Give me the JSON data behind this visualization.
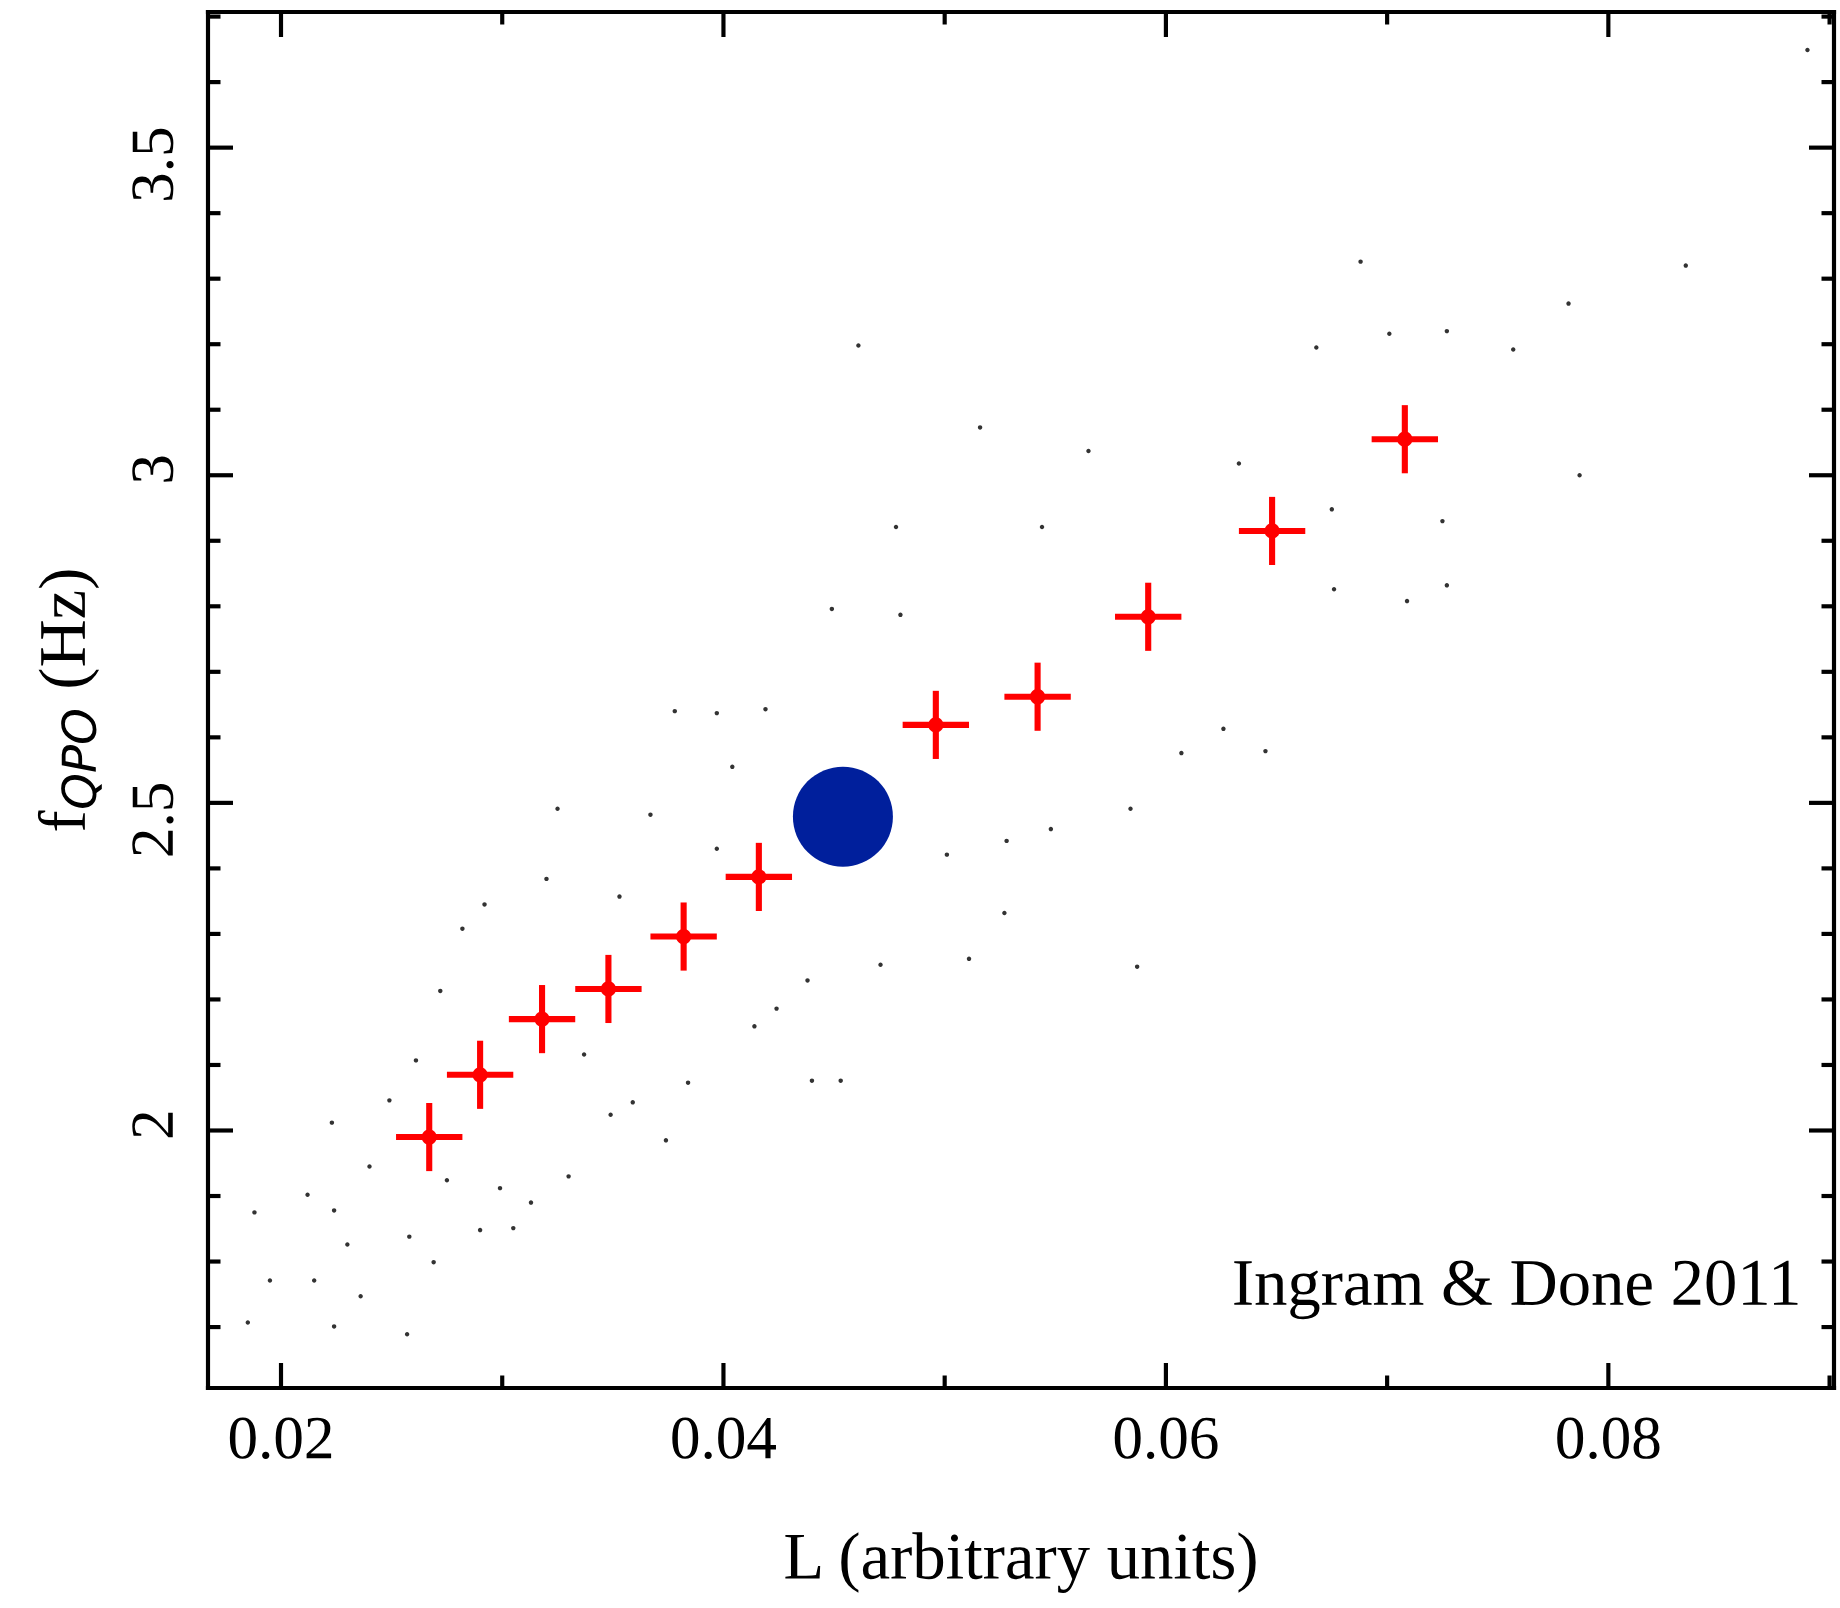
{
  "chart_data": {
    "type": "scatter",
    "xlabel": "L (arbitrary units)",
    "ylabel": "f$_{QPO}$ (Hz)",
    "annotations": [
      "Ingram & Done 2011"
    ],
    "xlim": [
      0.0167,
      0.0902
    ],
    "ylim": [
      1.607,
      3.707
    ],
    "xticks": [
      0.02,
      {
        "value": 0.03,
        "label": null
      },
      0.04,
      {
        "value": 0.05,
        "label": null
      },
      0.06,
      {
        "value": 0.07,
        "label": null
      },
      0.08,
      {
        "value": 0.09,
        "label": null
      }
    ],
    "yticks": [
      {
        "value": 1.7,
        "label": null
      },
      {
        "value": 1.8,
        "label": null
      },
      {
        "value": 1.9,
        "label": null
      },
      2,
      {
        "value": 2.1,
        "label": null
      },
      {
        "value": 2.2,
        "label": null
      },
      {
        "value": 2.3,
        "label": null
      },
      {
        "value": 2.4,
        "label": null
      },
      2.5,
      {
        "value": 2.6,
        "label": null
      },
      {
        "value": 2.7,
        "label": null
      },
      {
        "value": 2.8,
        "label": null
      },
      {
        "value": 2.9,
        "label": null
      },
      3,
      {
        "value": 3.1,
        "label": null
      },
      {
        "value": 3.2,
        "label": null
      },
      {
        "value": 3.3,
        "label": null
      },
      {
        "value": 3.4,
        "label": null
      },
      3.5,
      {
        "value": 3.6,
        "label": null
      },
      {
        "value": 3.7,
        "label": null
      }
    ],
    "grid": false,
    "legend": false,
    "series": [
      {
        "color": "#333333",
        "marker": "circle",
        "x": [
          0.0188,
          0.0185,
          0.0195,
          0.0212,
          0.0215,
          0.0223,
          0.0224,
          0.0224,
          0.023,
          0.0236,
          0.024,
          0.0249,
          0.0257,
          0.0258,
          0.0261,
          0.0269,
          0.0272,
          0.0275,
          0.0282,
          0.029,
          0.0292,
          0.0299,
          0.0305,
          0.0313,
          0.032,
          0.0325,
          0.033,
          0.0337,
          0.0349,
          0.0353,
          0.0359,
          0.0367,
          0.0374,
          0.0378,
          0.0384,
          0.0397,
          0.0397,
          0.0404,
          0.0414,
          0.0419,
          0.0424,
          0.0438,
          0.044,
          0.0449,
          0.0453,
          0.0461,
          0.0471,
          0.0478,
          0.048,
          0.0501,
          0.0511,
          0.0516,
          0.0527,
          0.0528,
          0.0544,
          0.0548,
          0.0565,
          0.0584,
          0.0587,
          0.0607,
          0.0626,
          0.0633,
          0.0645,
          0.0668,
          0.0675,
          0.0676,
          0.0688,
          0.0701,
          0.0709,
          0.0725,
          0.0727,
          0.0727,
          0.0757,
          0.0782,
          0.0787,
          0.0835,
          0.089
        ],
        "values": [
          1.875,
          1.707,
          1.771,
          1.902,
          1.771,
          2.012,
          1.878,
          1.701,
          1.826,
          1.747,
          1.945,
          2.046,
          1.689,
          1.838,
          2.107,
          1.799,
          2.213,
          1.924,
          2.308,
          1.848,
          2.345,
          1.912,
          1.851,
          1.89,
          2.384,
          2.491,
          1.93,
          2.116,
          2.024,
          2.357,
          2.043,
          2.482,
          1.985,
          2.64,
          2.073,
          2.637,
          2.43,
          2.555,
          2.159,
          2.643,
          2.186,
          2.229,
          2.076,
          2.796,
          2.076,
          3.198,
          2.253,
          2.921,
          2.787,
          2.421,
          2.262,
          3.073,
          2.332,
          2.442,
          2.921,
          2.46,
          3.037,
          2.491,
          2.25,
          2.576,
          2.613,
          3.018,
          2.579,
          3.195,
          2.948,
          2.826,
          3.326,
          3.216,
          2.808,
          2.93,
          3.22,
          2.832,
          3.192,
          3.262,
          3.0,
          3.32,
          3.649
        ]
      },
      {
        "color": "#ff0000",
        "marker": "circle",
        "errors": [
          0.052,
          0.052,
          0.052,
          0.052,
          0.052,
          0.052,
          0.052,
          0.052,
          0.052,
          0.052,
          0.052
        ],
        "xerrors": [
          0.0015,
          0.0015,
          0.0015,
          0.0015,
          0.0015,
          0.0015,
          0.0015,
          0.0015,
          0.0015,
          0.0015,
          0.0015
        ],
        "x": [
          0.0267,
          0.029,
          0.0318,
          0.0348,
          0.0382,
          0.0416,
          0.0496,
          0.0542,
          0.0592,
          0.0648,
          0.0708
        ],
        "values": [
          1.99,
          2.085,
          2.17,
          2.216,
          2.296,
          2.387,
          2.619,
          2.662,
          2.784,
          2.915,
          3.055
        ]
      },
      {
        "color": "#001f9c",
        "marker": "circle",
        "x": [
          0.0454
        ],
        "values": [
          2.479
        ]
      }
    ]
  }
}
